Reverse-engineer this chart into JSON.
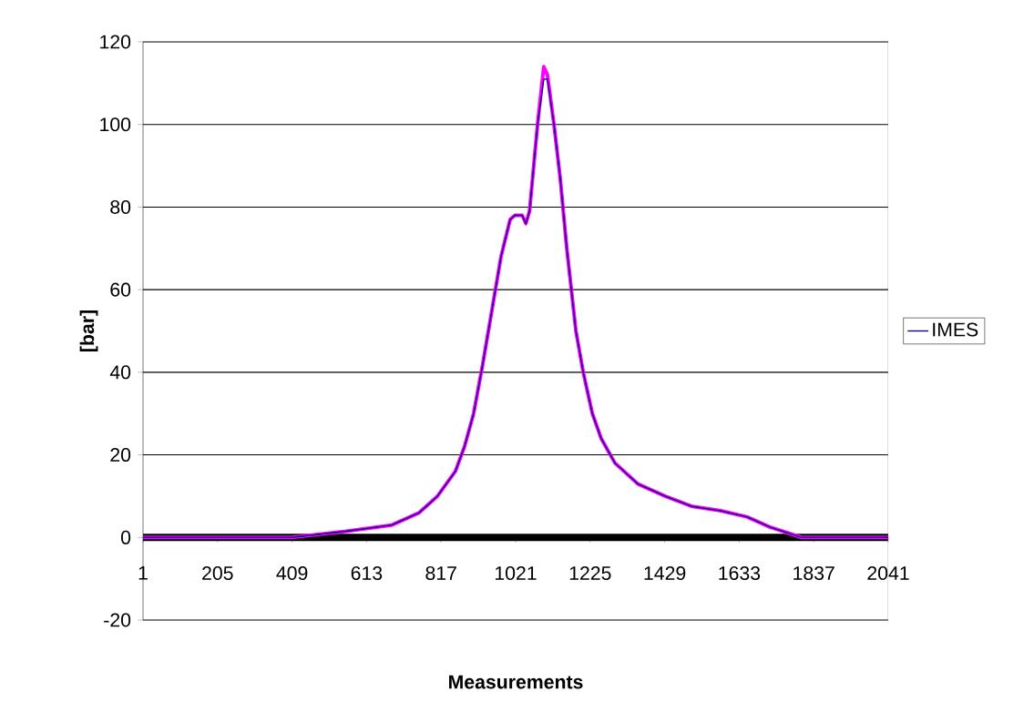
{
  "chart_data": {
    "type": "line",
    "xlabel": "Measurements",
    "ylabel": "[bar]",
    "x": [
      1,
      408,
      557,
      682,
      757,
      807,
      856,
      881,
      906,
      931,
      956,
      981,
      1006,
      1019,
      1039,
      1049,
      1059,
      1081,
      1098,
      1108,
      1126,
      1143,
      1161,
      1186,
      1206,
      1231,
      1255,
      1293,
      1355,
      1430,
      1505,
      1580,
      1654,
      1717,
      1804,
      2041
    ],
    "series": [
      {
        "name": "IMES",
        "color": "#000080",
        "values": [
          0,
          0,
          1.5,
          3,
          6,
          10,
          16,
          22,
          30,
          42,
          55,
          68,
          77,
          78,
          78,
          76,
          79,
          100,
          111,
          111,
          100,
          87,
          70,
          50,
          40,
          30,
          24,
          18,
          13,
          10,
          7.5,
          6.5,
          5,
          2.5,
          0,
          0
        ]
      },
      {
        "color": "#ff00ff",
        "values": [
          0,
          0,
          1.5,
          3,
          6,
          10,
          16,
          22,
          30,
          42,
          55,
          68,
          77,
          78,
          78,
          76,
          79,
          100,
          114,
          112,
          100,
          87,
          70,
          50,
          40,
          30,
          24,
          18,
          13,
          10,
          7.5,
          6.5,
          5,
          2.5,
          0,
          0
        ]
      }
    ],
    "xlim": [
      1,
      2041
    ],
    "xticks": [
      1,
      205,
      409,
      613,
      817,
      1021,
      1225,
      1429,
      1633,
      1837,
      2041
    ],
    "ylim": [
      -20,
      120
    ],
    "yticks": [
      -20,
      0,
      20,
      40,
      60,
      80,
      100,
      120
    ],
    "grid": "y",
    "legend": "right"
  }
}
